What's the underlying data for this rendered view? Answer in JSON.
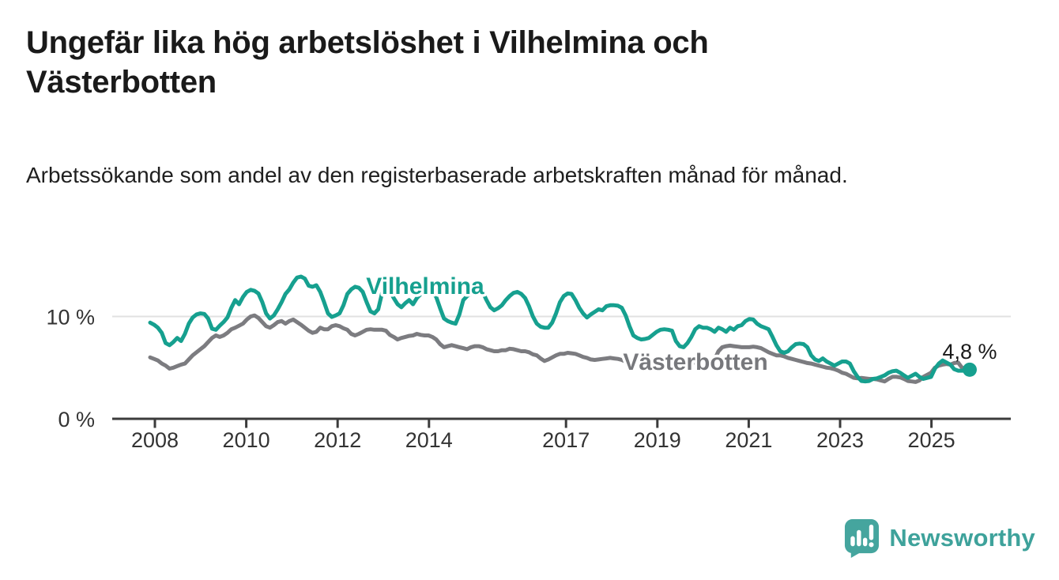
{
  "header": {
    "title": "Ungefär lika hög arbetslöshet i Vilhelmina och Västerbotten",
    "subtitle": "Arbetssökande som andel av den registerbaserade arbetskraften månad för månad."
  },
  "branding": {
    "wordmark": "Newsworthy",
    "logo_icon": "bar-chart-speech-bubble-icon",
    "brand_color": "#3EA29B"
  },
  "colors": {
    "vilhelmina_line": "#16A08F",
    "vasterbotten_line": "#7C7C80",
    "vasterbotten_label": "#77787C",
    "axis": "#3B3B3B",
    "tick_label": "#333333",
    "grid_line": "#E1E1E1",
    "annotation_text": "#1A1A1A",
    "background": "#FFFFFF"
  },
  "chart_data": {
    "type": "line",
    "title": "Ungefär lika hög arbetslöshet i Vilhelmina och Västerbotten",
    "subtitle": "Arbetssökande som andel av den registerbaserade arbetskraften månad för månad.",
    "unit": "%",
    "x_start": "2008-01",
    "x_end": "2025-09",
    "x_step": "month",
    "ylim": [
      0,
      14.5
    ],
    "grid": "horizontal line at 10 % only",
    "legend_position": "inline labels on lines",
    "yticks": [
      {
        "value": 0,
        "label": "0 %"
      },
      {
        "value": 10,
        "label": "10 %"
      }
    ],
    "xticks": [
      {
        "year": 2008,
        "label": "2008"
      },
      {
        "year": 2010,
        "label": "2010"
      },
      {
        "year": 2012,
        "label": "2012"
      },
      {
        "year": 2014,
        "label": "2014"
      },
      {
        "year": 2017,
        "label": "2017"
      },
      {
        "year": 2019,
        "label": "2019"
      },
      {
        "year": 2021,
        "label": "2021"
      },
      {
        "year": 2023,
        "label": "2023"
      },
      {
        "year": 2025,
        "label": "2025"
      }
    ],
    "series": [
      {
        "name": "Vilhelmina",
        "color": "#16A08F",
        "values": [
          9.4,
          9.2,
          8.9,
          8.4,
          7.4,
          7.2,
          7.5,
          7.9,
          7.6,
          8.3,
          9.3,
          9.9,
          10.2,
          10.3,
          10.25,
          9.8,
          8.8,
          8.7,
          9.1,
          9.45,
          9.9,
          10.85,
          11.6,
          11.2,
          11.9,
          12.4,
          12.6,
          12.5,
          12.25,
          11.4,
          10.3,
          9.8,
          10.1,
          10.7,
          11.4,
          12.2,
          12.65,
          13.3,
          13.8,
          13.9,
          13.7,
          13.0,
          12.9,
          13.05,
          12.4,
          11.4,
          10.3,
          9.95,
          10.1,
          10.3,
          11.1,
          12.2,
          12.65,
          12.9,
          12.8,
          12.4,
          11.4,
          10.5,
          10.3,
          10.7,
          12.3,
          12.8,
          12.5,
          11.8,
          11.2,
          10.9,
          11.3,
          11.6,
          11.2,
          11.8,
          12.2,
          12.4,
          12.6,
          12.4,
          11.9,
          10.8,
          9.8,
          9.55,
          9.4,
          9.3,
          10.2,
          11.6,
          12.0,
          12.2,
          12.3,
          12.5,
          12.4,
          11.6,
          10.9,
          10.6,
          10.8,
          11.1,
          11.6,
          12.0,
          12.3,
          12.4,
          12.2,
          11.8,
          11.0,
          10.0,
          9.3,
          9.0,
          8.9,
          8.9,
          9.4,
          10.3,
          11.4,
          12.0,
          12.25,
          12.2,
          11.6,
          10.85,
          10.3,
          9.9,
          10.2,
          10.45,
          10.7,
          10.6,
          11.0,
          11.1,
          11.1,
          11.05,
          10.85,
          10.1,
          9.05,
          8.15,
          7.9,
          7.75,
          7.8,
          7.9,
          8.2,
          8.5,
          8.7,
          8.75,
          8.7,
          8.6,
          7.6,
          7.1,
          7.0,
          7.4,
          8.0,
          8.75,
          9.05,
          8.9,
          8.9,
          8.75,
          8.5,
          8.9,
          8.75,
          8.5,
          8.9,
          8.7,
          9.05,
          9.15,
          9.55,
          9.75,
          9.7,
          9.3,
          9.05,
          8.9,
          8.75,
          8.0,
          7.2,
          6.6,
          6.45,
          6.6,
          7.0,
          7.3,
          7.35,
          7.3,
          7.0,
          6.2,
          5.8,
          5.65,
          5.9,
          5.6,
          5.4,
          5.2,
          5.4,
          5.6,
          5.6,
          5.4,
          4.65,
          4.1,
          3.7,
          3.65,
          3.7,
          3.9,
          3.95,
          4.1,
          4.25,
          4.5,
          4.65,
          4.7,
          4.5,
          4.25,
          4.0,
          4.2,
          4.4,
          4.1,
          3.9,
          4.0,
          4.1,
          4.9,
          5.4,
          5.7,
          5.5,
          5.3,
          4.85,
          4.7,
          4.7,
          4.7,
          4.8
        ]
      },
      {
        "name": "Västerbotten",
        "color": "#7C7C80",
        "values": [
          6.0,
          5.85,
          5.7,
          5.4,
          5.2,
          4.9,
          5.0,
          5.15,
          5.3,
          5.4,
          5.8,
          6.2,
          6.5,
          6.8,
          7.1,
          7.5,
          7.9,
          8.15,
          8.0,
          8.15,
          8.4,
          8.75,
          8.9,
          9.1,
          9.3,
          9.7,
          10.0,
          10.1,
          9.85,
          9.45,
          9.05,
          8.9,
          9.15,
          9.45,
          9.55,
          9.3,
          9.55,
          9.7,
          9.45,
          9.2,
          8.9,
          8.6,
          8.4,
          8.5,
          8.9,
          8.75,
          8.75,
          9.05,
          9.15,
          9.05,
          8.85,
          8.7,
          8.3,
          8.15,
          8.3,
          8.5,
          8.7,
          8.75,
          8.7,
          8.7,
          8.7,
          8.6,
          8.2,
          8.0,
          7.75,
          7.9,
          8.0,
          8.1,
          8.15,
          8.3,
          8.2,
          8.15,
          8.15,
          8.0,
          7.75,
          7.3,
          7.0,
          7.1,
          7.2,
          7.1,
          7.0,
          6.9,
          6.8,
          7.0,
          7.1,
          7.1,
          7.0,
          6.8,
          6.7,
          6.6,
          6.6,
          6.7,
          6.7,
          6.85,
          6.8,
          6.7,
          6.6,
          6.6,
          6.5,
          6.3,
          6.2,
          5.9,
          5.65,
          5.8,
          6.0,
          6.2,
          6.35,
          6.35,
          6.45,
          6.4,
          6.35,
          6.2,
          6.05,
          5.95,
          5.8,
          5.75,
          5.8,
          5.85,
          5.9,
          5.95,
          5.9,
          5.85,
          5.75,
          5.6,
          5.45,
          5.35,
          5.4,
          5.45,
          5.5,
          5.55,
          5.6,
          5.65,
          5.7,
          5.65,
          5.6,
          5.5,
          5.4,
          5.3,
          5.35,
          5.4,
          5.45,
          5.5,
          5.55,
          5.6,
          5.6,
          5.6,
          5.8,
          6.6,
          7.0,
          7.1,
          7.15,
          7.1,
          7.05,
          7.0,
          7.0,
          7.0,
          7.05,
          7.0,
          6.9,
          6.7,
          6.5,
          6.35,
          6.2,
          6.2,
          6.1,
          5.95,
          5.85,
          5.75,
          5.65,
          5.55,
          5.45,
          5.4,
          5.3,
          5.2,
          5.1,
          5.0,
          4.95,
          4.85,
          4.7,
          4.5,
          4.4,
          4.2,
          4.0,
          3.95,
          4.0,
          3.95,
          3.9,
          3.9,
          3.85,
          3.75,
          3.65,
          3.9,
          4.1,
          4.1,
          4.05,
          3.9,
          3.7,
          3.65,
          3.6,
          3.75,
          4.1,
          4.3,
          4.5,
          5.0,
          5.2,
          5.3,
          5.35,
          5.3,
          5.45,
          5.5,
          5.0,
          4.9,
          4.95
        ]
      }
    ],
    "series_labels": [
      {
        "series": "Vilhelmina",
        "text": "Vilhelmina"
      },
      {
        "series": "Västerbotten",
        "text": "Västerbotten"
      }
    ],
    "end_annotation": {
      "series": "Vilhelmina",
      "label": "4,8 %",
      "value": 4.8
    }
  }
}
